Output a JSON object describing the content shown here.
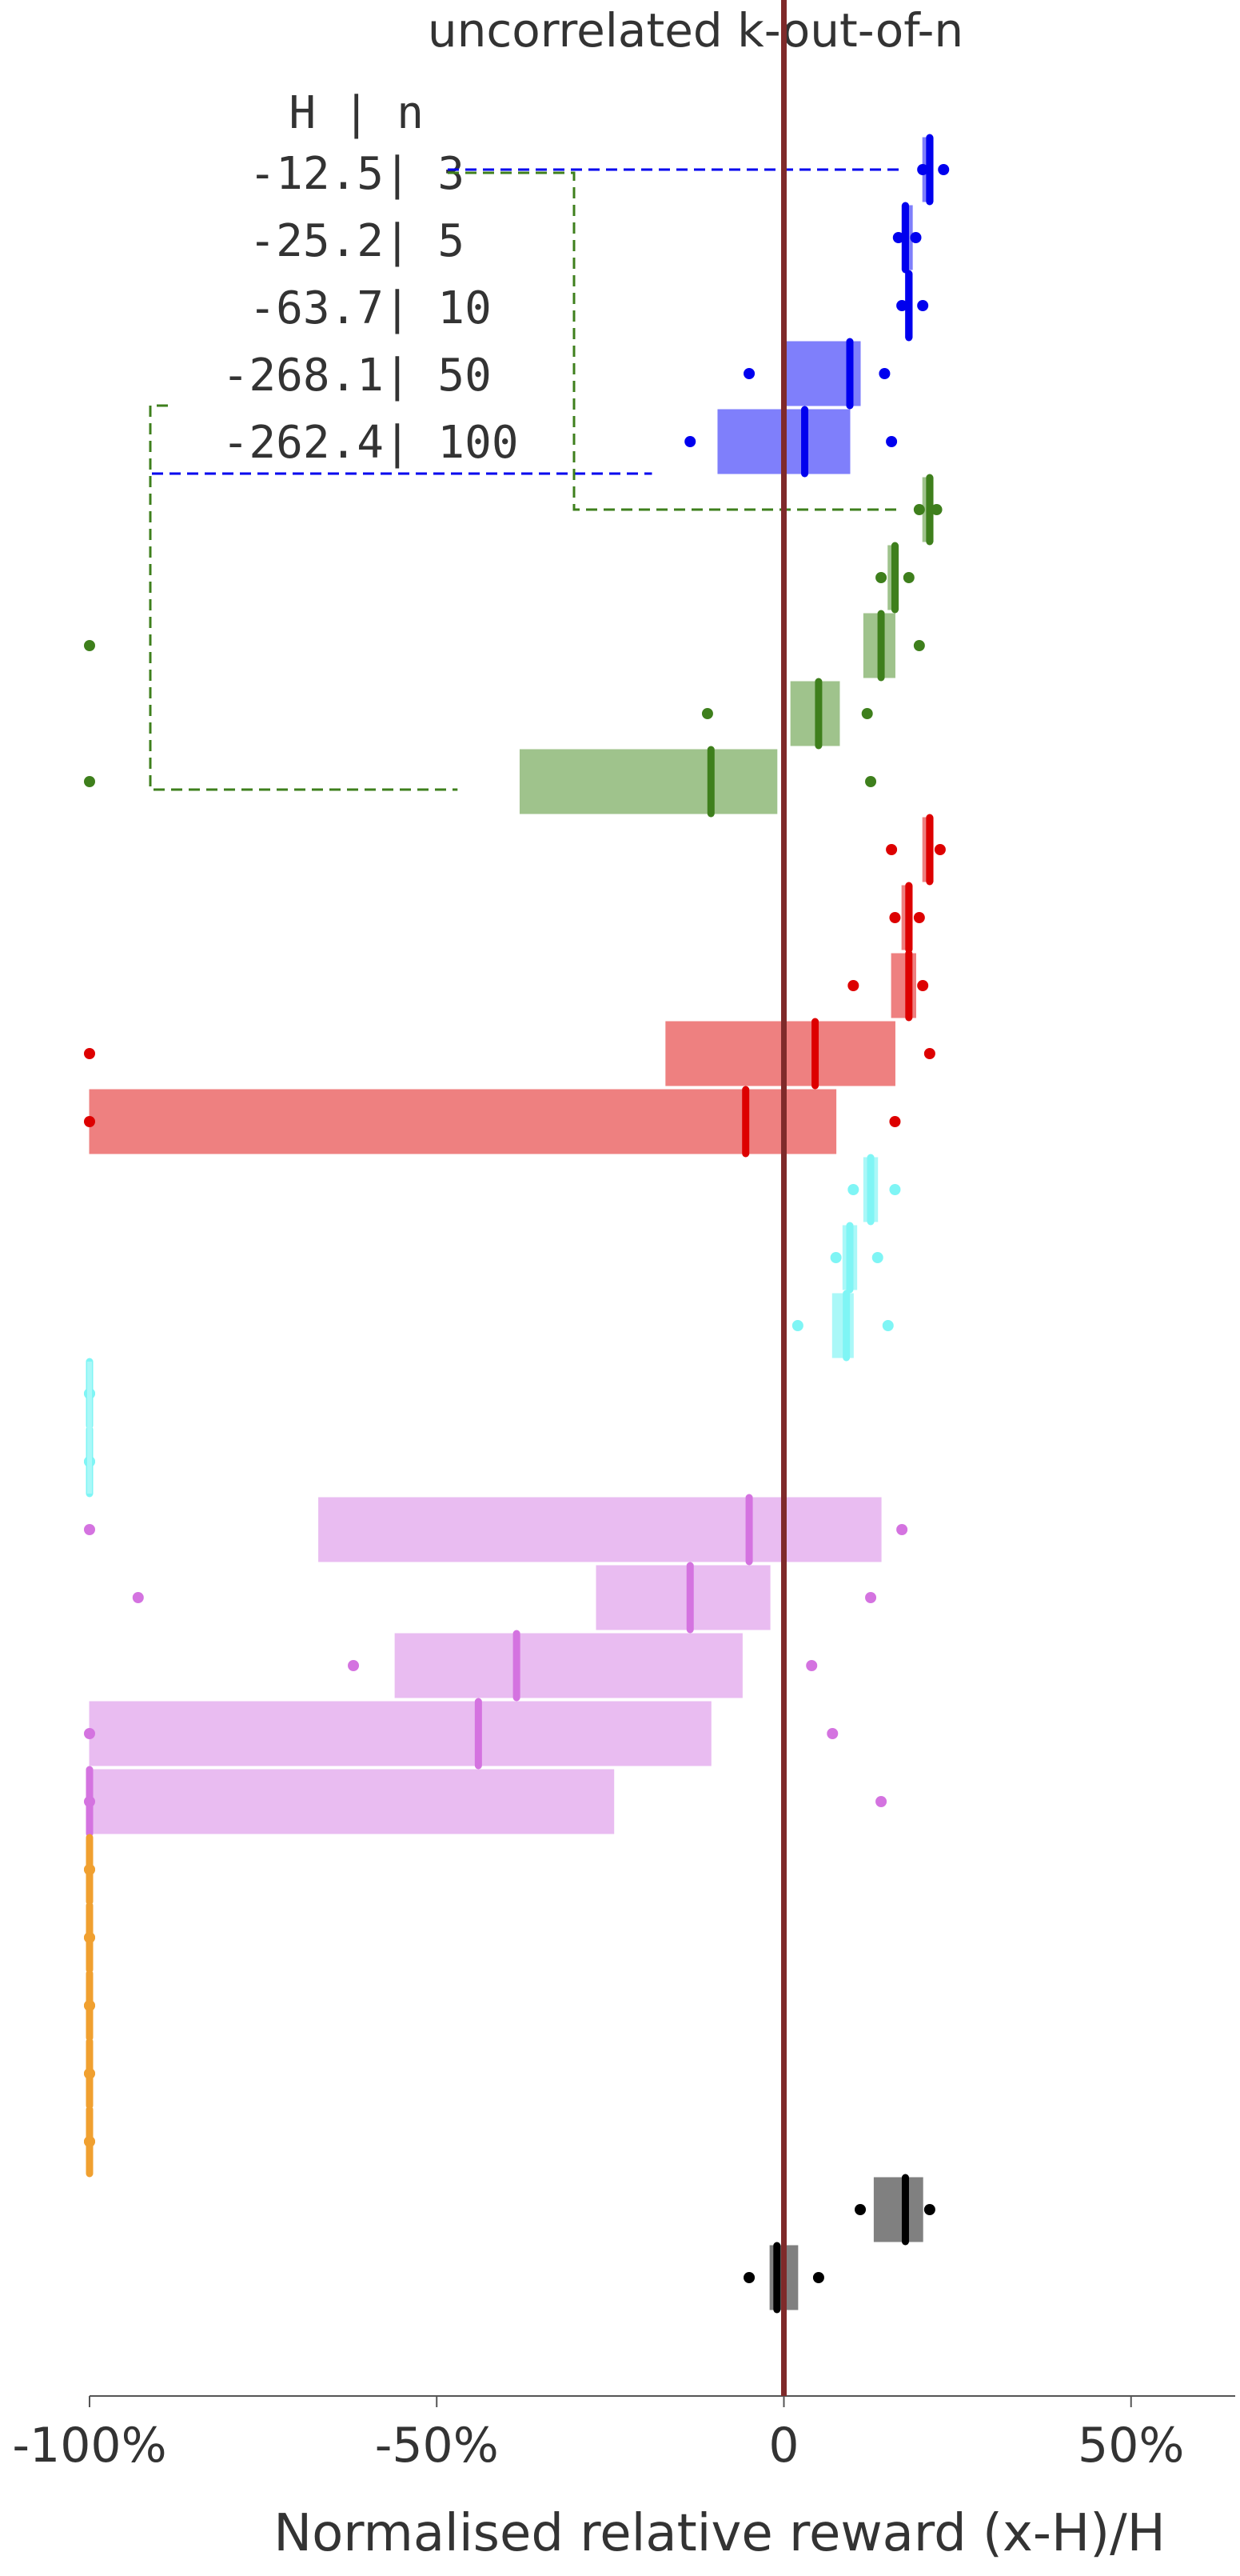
{
  "chart_data": {
    "type": "box",
    "title": "uncorrelated k-out-of-n",
    "xlabel": "Normalised relative reward (x-H)/H",
    "ylabel": "",
    "xlim": [
      -100,
      65
    ],
    "xticks": [
      -100,
      -50,
      0,
      50
    ],
    "xtick_labels": [
      "-100%",
      "-50%",
      "0",
      "50%"
    ],
    "grid": false,
    "reference_line": {
      "x": 0,
      "color": "#7f2a2a"
    },
    "annotation": {
      "header": "H | n",
      "rows": [
        "-12.5| 3",
        "-25.2| 5",
        "-63.7| 10",
        "-268.1| 50",
        "-262.4| 100"
      ]
    },
    "groups": [
      {
        "color": "#0000ee",
        "fill": "#7f7ffb",
        "boxes": [
          {
            "q1": 20,
            "median": 21,
            "q3": 21.5,
            "whisker_low": 20,
            "whisker_high": 23
          },
          {
            "q1": 17,
            "median": 17.5,
            "q3": 18.5,
            "whisker_low": 16.5,
            "whisker_high": 19
          },
          {
            "q1": 17.5,
            "median": 18,
            "q3": 18.5,
            "whisker_low": 17,
            "whisker_high": 20
          },
          {
            "q1": 0,
            "median": 9.5,
            "q3": 11,
            "whisker_low": -5,
            "whisker_high": 14.5
          },
          {
            "q1": -9.5,
            "median": 3,
            "q3": 9.5,
            "whisker_low": -13.5,
            "whisker_high": 15.5
          }
        ]
      },
      {
        "color": "#3e7f1c",
        "fill": "#9fc38c",
        "boxes": [
          {
            "q1": 20,
            "median": 21,
            "q3": 21.5,
            "whisker_low": 19.5,
            "whisker_high": 22
          },
          {
            "q1": 15,
            "median": 16,
            "q3": 16.5,
            "whisker_low": 14,
            "whisker_high": 18
          },
          {
            "q1": 11.5,
            "median": 14,
            "q3": 16,
            "whisker_low": -100,
            "whisker_high": 19.5
          },
          {
            "q1": 1,
            "median": 5,
            "q3": 8,
            "whisker_low": -11,
            "whisker_high": 12
          },
          {
            "q1": -38,
            "median": -10.5,
            "q3": -1,
            "whisker_low": -100,
            "whisker_high": 12.5
          }
        ]
      },
      {
        "color": "#dd0000",
        "fill": "#ee8080",
        "boxes": [
          {
            "q1": 20,
            "median": 21,
            "q3": 21.5,
            "whisker_low": 15.5,
            "whisker_high": 22.5
          },
          {
            "q1": 17,
            "median": 18,
            "q3": 18.5,
            "whisker_low": 16,
            "whisker_high": 19.5
          },
          {
            "q1": 15.5,
            "median": 18,
            "q3": 19,
            "whisker_low": 10,
            "whisker_high": 20
          },
          {
            "q1": -17,
            "median": 4.5,
            "q3": 16,
            "whisker_low": -100,
            "whisker_high": 21
          },
          {
            "q1": -100,
            "median": -5.5,
            "q3": 7.5,
            "whisker_low": -100,
            "whisker_high": 16
          }
        ]
      },
      {
        "color": "#7ff5f5",
        "fill": "#aaf8f8",
        "boxes": [
          {
            "q1": 11.5,
            "median": 12.5,
            "q3": 13.5,
            "whisker_low": 10,
            "whisker_high": 16
          },
          {
            "q1": 8.5,
            "median": 9.5,
            "q3": 10.5,
            "whisker_low": 7.5,
            "whisker_high": 13.5
          },
          {
            "q1": 7,
            "median": 9,
            "q3": 10,
            "whisker_low": 2,
            "whisker_high": 15
          },
          {
            "q1": -100,
            "median": -100,
            "q3": -100,
            "whisker_low": -100,
            "whisker_high": -100
          },
          {
            "q1": -100,
            "median": -100,
            "q3": -100,
            "whisker_low": -100,
            "whisker_high": -100
          }
        ]
      },
      {
        "color": "#d473e0",
        "fill": "#e9bcf1",
        "boxes": [
          {
            "q1": -67,
            "median": -5,
            "q3": 14,
            "whisker_low": -100,
            "whisker_high": 17
          },
          {
            "q1": -27,
            "median": -13.5,
            "q3": -2,
            "whisker_low": -93,
            "whisker_high": 12.5
          },
          {
            "q1": -56,
            "median": -38.5,
            "q3": -6,
            "whisker_low": -62,
            "whisker_high": 4
          },
          {
            "q1": -100,
            "median": -44,
            "q3": -10.5,
            "whisker_low": -100,
            "whisker_high": 7
          },
          {
            "q1": -100,
            "median": -100,
            "q3": -24.5,
            "whisker_low": -100,
            "whisker_high": 14
          }
        ]
      },
      {
        "color": "#f0a030",
        "fill": "#f7cf97",
        "boxes": [
          {
            "q1": -100,
            "median": -100,
            "q3": -100,
            "whisker_low": -100,
            "whisker_high": -100
          },
          {
            "q1": -100,
            "median": -100,
            "q3": -100,
            "whisker_low": -100,
            "whisker_high": -100
          },
          {
            "q1": -100,
            "median": -100,
            "q3": -100,
            "whisker_low": -100,
            "whisker_high": -100
          },
          {
            "q1": -100,
            "median": -100,
            "q3": -100,
            "whisker_low": -100,
            "whisker_high": -100
          },
          {
            "q1": -100,
            "median": -100,
            "q3": -100,
            "whisker_low": -100,
            "whisker_high": -100
          }
        ]
      },
      {
        "color": "#000000",
        "fill": "#808080",
        "boxes": [
          {
            "q1": 13,
            "median": 17.5,
            "q3": 20,
            "whisker_low": 11,
            "whisker_high": 21
          },
          {
            "q1": -2,
            "median": -1,
            "q3": 2,
            "whisker_low": -5,
            "whisker_high": 5
          }
        ]
      }
    ]
  }
}
